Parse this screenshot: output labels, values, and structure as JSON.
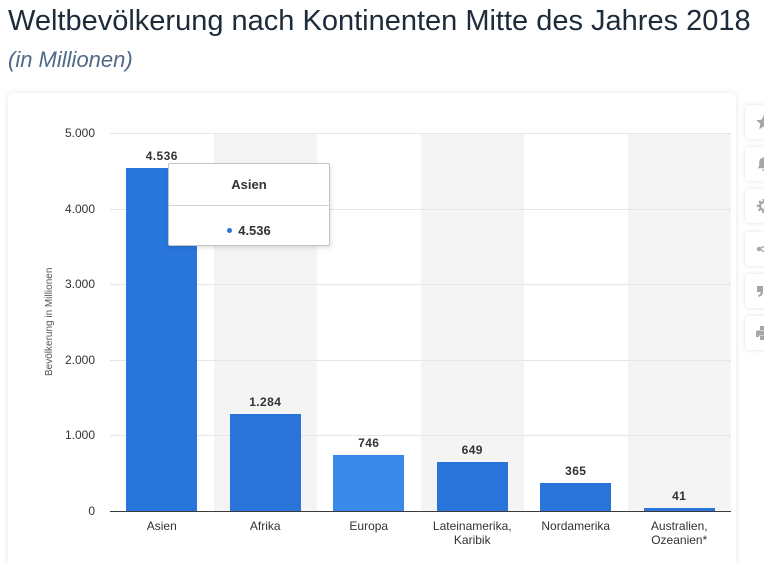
{
  "chart_data": {
    "type": "bar",
    "title": "Weltbevölkerung nach Kontinenten Mitte des Jahres 2018",
    "subtitle": "(in Millionen)",
    "ylabel": "Bevölkerung in Millionen",
    "categories": [
      "Asien",
      "Afrika",
      "Europa",
      "Lateinamerika, Karibik",
      "Nordamerika",
      "Australien, Ozeanien*"
    ],
    "values": [
      4536,
      1284,
      746,
      649,
      365,
      41
    ],
    "data_labels": [
      "4.536",
      "1.284",
      "746",
      "649",
      "365",
      "41"
    ],
    "ylim": [
      0,
      5000
    ],
    "yticks": [
      0,
      1000,
      2000,
      3000,
      4000,
      5000
    ],
    "ytick_labels": [
      "0",
      "1.000",
      "2.000",
      "3.000",
      "4.000",
      "5.000"
    ],
    "grid": true,
    "legend": "none",
    "bar_colors": [
      "#2876dc",
      "#2a73d9",
      "#3a88e8",
      "#2a73d9",
      "#2a73d9",
      "#2a73d9"
    ],
    "alternate_band_color": "#f4f4f4"
  },
  "tooltip": {
    "category": "Asien",
    "value": "4.536",
    "bullet_color": "#2a73d9"
  },
  "toolbar": {
    "buttons": [
      {
        "icon": "star-icon"
      },
      {
        "icon": "bell-icon"
      },
      {
        "icon": "gear-icon"
      },
      {
        "icon": "share-icon"
      },
      {
        "icon": "quote-icon"
      },
      {
        "icon": "print-icon"
      }
    ]
  }
}
